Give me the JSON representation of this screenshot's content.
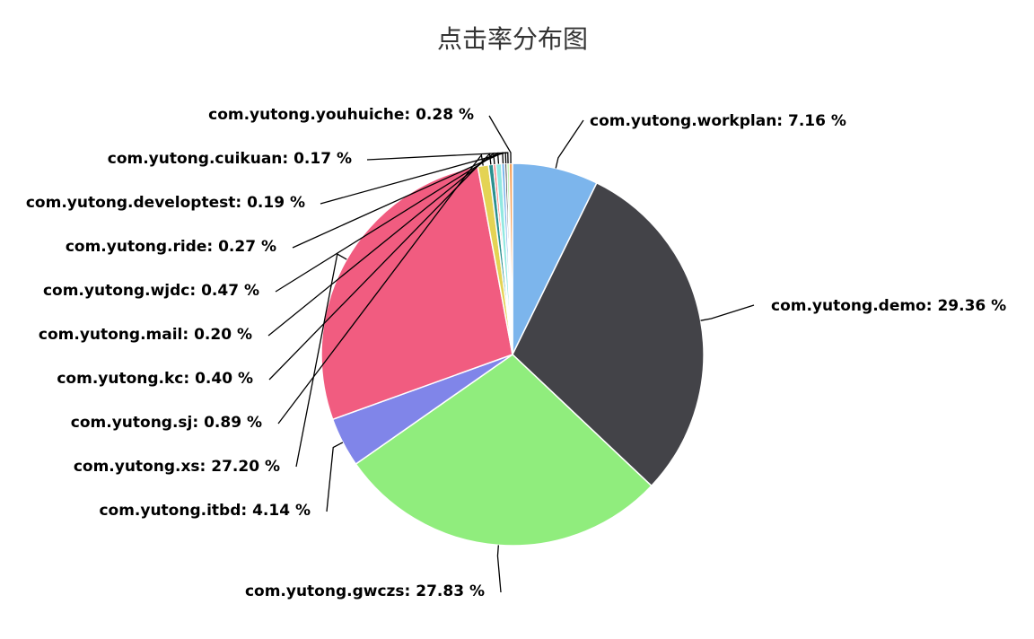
{
  "chart_data": {
    "type": "pie",
    "title": "点击率分布图",
    "slices": [
      {
        "name": "com.yutong.workplan",
        "value": 7.16,
        "label": "com.yutong.workplan: 7.16 %",
        "color": "#7cb5ec"
      },
      {
        "name": "com.yutong.demo",
        "value": 29.36,
        "label": "com.yutong.demo: 29.36 %",
        "color": "#434348"
      },
      {
        "name": "com.yutong.gwczs",
        "value": 27.83,
        "label": "com.yutong.gwczs: 27.83 %",
        "color": "#90ed7d"
      },
      {
        "name": "com.yutong.itbd",
        "value": 4.14,
        "label": "com.yutong.itbd: 4.14 %",
        "color": "#8085e9"
      },
      {
        "name": "com.yutong.xs",
        "value": 27.2,
        "label": "com.yutong.xs: 27.20 %",
        "color": "#f15c80"
      },
      {
        "name": "com.yutong.sj",
        "value": 0.89,
        "label": "com.yutong.sj: 0.89 %",
        "color": "#e4d354"
      },
      {
        "name": "com.yutong.kc",
        "value": 0.4,
        "label": "com.yutong.kc: 0.40 %",
        "color": "#2b908f"
      },
      {
        "name": "com.yutong.mail",
        "value": 0.2,
        "label": "com.yutong.mail: 0.20 %",
        "color": "#f45b5b"
      },
      {
        "name": "com.yutong.wjdc",
        "value": 0.47,
        "label": "com.yutong.wjdc: 0.47 %",
        "color": "#91e8e1"
      },
      {
        "name": "com.yutong.ride",
        "value": 0.27,
        "label": "com.yutong.ride: 0.27 %",
        "color": "#7cb5ec"
      },
      {
        "name": "com.yutong.developtest",
        "value": 0.19,
        "label": "com.yutong.developtest: 0.19 %",
        "color": "#434348"
      },
      {
        "name": "com.yutong.cuikuan",
        "value": 0.17,
        "label": "com.yutong.cuikuan: 0.17 %",
        "color": "#90ed7d"
      },
      {
        "name": "com.yutong.youhuiche",
        "value": 0.28,
        "label": "com.yutong.youhuiche: 0.28 %",
        "color": "#f7a35c"
      }
    ]
  }
}
